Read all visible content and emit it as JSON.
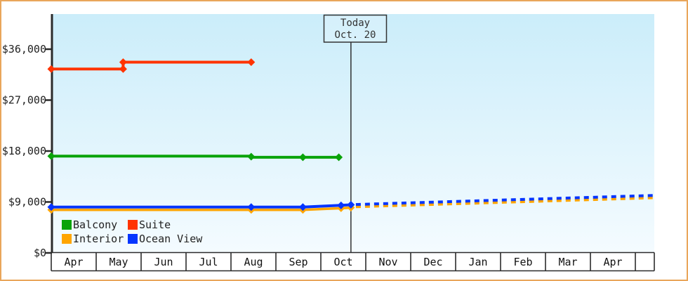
{
  "window": {
    "frame_color": "#E9A65B",
    "plot_bg_top": "#CBEDFA",
    "plot_bg_bottom": "#F4FBFF",
    "axis_color": "#2B2B2B",
    "text_color": "#222222"
  },
  "today_marker": {
    "line1": "Today",
    "line2": "Oct. 20",
    "month_offset": 6.67
  },
  "legend": {
    "items": [
      {
        "label": "Balcony",
        "color": "#0AA30A"
      },
      {
        "label": "Suite",
        "color": "#FF3300"
      },
      {
        "label": "Interior",
        "color": "#FFA500"
      },
      {
        "label": "Ocean View",
        "color": "#0535FF"
      }
    ]
  },
  "chart_data": {
    "type": "line",
    "title": "",
    "x_axis": {
      "categories": [
        "Apr",
        "May",
        "Jun",
        "Jul",
        "Aug",
        "Sep",
        "Oct",
        "Nov",
        "Dec",
        "Jan",
        "Feb",
        "Mar",
        "Apr"
      ]
    },
    "y_axis": {
      "ticks": [
        {
          "value": 0,
          "label": "$0"
        },
        {
          "value": 9000,
          "label": "$9,000"
        },
        {
          "value": 18000,
          "label": "$18,000"
        },
        {
          "value": 27000,
          "label": "$27,000"
        },
        {
          "value": 36000,
          "label": "$36,000"
        }
      ],
      "ylim": [
        0,
        42200
      ]
    },
    "series": [
      {
        "name": "Suite",
        "color": "#FF3300",
        "style": "solid",
        "points": [
          [
            0,
            32500
          ],
          [
            1.6,
            32500
          ],
          [
            1.6,
            33700
          ],
          [
            4.45,
            33700
          ]
        ],
        "markers": [
          [
            0,
            32500
          ],
          [
            1.6,
            32500
          ],
          [
            1.6,
            33700
          ],
          [
            4.45,
            33700
          ]
        ]
      },
      {
        "name": "Balcony",
        "color": "#0AA30A",
        "style": "solid",
        "points": [
          [
            0,
            17100
          ],
          [
            4.45,
            17100
          ],
          [
            4.45,
            16900
          ],
          [
            5.6,
            16900
          ],
          [
            6.4,
            16900
          ]
        ],
        "markers": [
          [
            0,
            17100
          ],
          [
            4.45,
            17000
          ],
          [
            5.6,
            16900
          ],
          [
            6.4,
            16900
          ]
        ]
      },
      {
        "name": "Interior",
        "color": "#FFA500",
        "style": "solid",
        "points": [
          [
            0,
            7600
          ],
          [
            4.45,
            7600
          ],
          [
            5.6,
            7600
          ],
          [
            6.45,
            7900
          ],
          [
            6.67,
            8000
          ]
        ],
        "markers": [
          [
            0,
            7600
          ],
          [
            4.45,
            7600
          ],
          [
            5.6,
            7600
          ],
          [
            6.45,
            7900
          ],
          [
            6.67,
            8000
          ]
        ]
      },
      {
        "name": "Ocean View",
        "color": "#0535FF",
        "style": "solid",
        "points": [
          [
            0,
            8100
          ],
          [
            4.45,
            8100
          ],
          [
            5.6,
            8100
          ],
          [
            6.45,
            8400
          ],
          [
            6.67,
            8500
          ]
        ],
        "markers": [
          [
            0,
            8100
          ],
          [
            4.45,
            8100
          ],
          [
            5.6,
            8100
          ],
          [
            6.45,
            8400
          ],
          [
            6.67,
            8500
          ]
        ]
      }
    ],
    "forecast_series": [
      {
        "name": "Interior forecast",
        "color": "#FFA500",
        "style": "dashed",
        "points": [
          [
            6.78,
            8150
          ],
          [
            13.4,
            9750
          ]
        ]
      },
      {
        "name": "Ocean View forecast",
        "color": "#0535FF",
        "style": "dashed",
        "points": [
          [
            6.78,
            8550
          ],
          [
            13.4,
            10150
          ]
        ]
      }
    ]
  }
}
